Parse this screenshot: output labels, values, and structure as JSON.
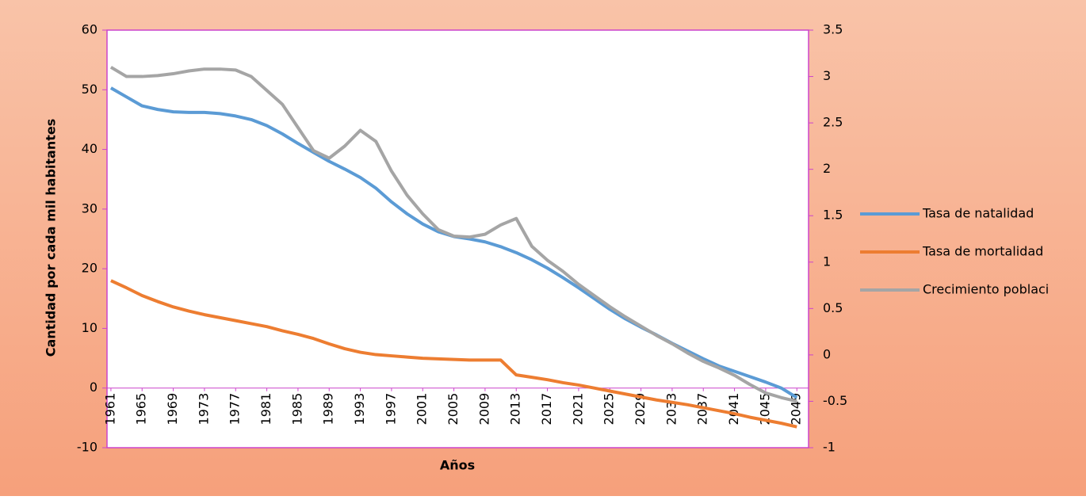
{
  "chart_data": {
    "type": "line",
    "x_label": "Años",
    "y_label": "Cantidad por cada mil habitantes",
    "x": [
      1961,
      1963,
      1965,
      1967,
      1969,
      1971,
      1973,
      1975,
      1977,
      1979,
      1981,
      1983,
      1985,
      1987,
      1989,
      1991,
      1993,
      1995,
      1997,
      1999,
      2001,
      2003,
      2005,
      2007,
      2009,
      2011,
      2013,
      2015,
      2017,
      2019,
      2021,
      2023,
      2025,
      2027,
      2029,
      2031,
      2033,
      2035,
      2037,
      2039,
      2041,
      2043,
      2045,
      2047,
      2049
    ],
    "xlim": [
      1960.5,
      2050.5
    ],
    "xticks": [
      1961,
      1965,
      1969,
      1973,
      1977,
      1981,
      1985,
      1989,
      1993,
      1997,
      2001,
      2005,
      2009,
      2013,
      2017,
      2021,
      2025,
      2029,
      2033,
      2037,
      2041,
      2045,
      2049
    ],
    "ylim": [
      -10,
      60
    ],
    "yticks": [
      -10,
      0,
      10,
      20,
      30,
      40,
      50,
      60
    ],
    "y2lim": [
      -1,
      3.5
    ],
    "y2ticks": [
      -1,
      -0.5,
      0,
      0.5,
      1,
      1.5,
      2,
      2.5,
      3,
      3.5
    ],
    "series": [
      {
        "name": "Tasa de natalidad",
        "color": "#5b9bd5",
        "values": [
          50.3,
          48.8,
          47.3,
          46.7,
          46.3,
          46.2,
          46.2,
          46.0,
          45.6,
          45.0,
          44.0,
          42.6,
          41.0,
          39.5,
          38.0,
          36.7,
          35.3,
          33.5,
          31.2,
          29.2,
          27.5,
          26.2,
          25.4,
          25.0,
          24.5,
          23.7,
          22.7,
          21.5,
          20.1,
          18.5,
          16.8,
          15.0,
          13.2,
          11.6,
          10.2,
          8.9,
          7.5,
          6.2,
          4.9,
          3.7,
          2.8,
          1.9,
          1.0,
          0.0,
          -1.6
        ]
      },
      {
        "name": "Tasa de mortalidad",
        "color": "#ed7d31",
        "values": [
          18.0,
          16.8,
          15.5,
          14.5,
          13.6,
          12.9,
          12.3,
          11.8,
          11.3,
          10.8,
          10.3,
          9.6,
          9.0,
          8.3,
          7.4,
          6.6,
          6.0,
          5.6,
          5.4,
          5.2,
          5.0,
          4.9,
          4.8,
          4.7,
          4.7,
          4.7,
          2.2,
          1.8,
          1.4,
          0.9,
          0.5,
          0.0,
          -0.5,
          -1.0,
          -1.5,
          -2.0,
          -2.4,
          -2.8,
          -3.3,
          -3.8,
          -4.3,
          -4.9,
          -5.4,
          -5.9,
          -6.5
        ]
      },
      {
        "name": "Crecimiento poblaci",
        "color": "#a5a5a5",
        "axis": "y2",
        "values": [
          3.1,
          3.0,
          3.0,
          3.01,
          3.03,
          3.06,
          3.08,
          3.08,
          3.07,
          3.0,
          2.85,
          2.7,
          2.45,
          2.2,
          2.12,
          2.25,
          2.42,
          2.3,
          1.98,
          1.72,
          1.52,
          1.35,
          1.28,
          1.27,
          1.3,
          1.4,
          1.47,
          1.17,
          1.02,
          0.9,
          0.76,
          0.64,
          0.52,
          0.41,
          0.31,
          0.21,
          0.12,
          0.02,
          -0.07,
          -0.14,
          -0.22,
          -0.32,
          -0.41,
          -0.46,
          -0.5
        ]
      }
    ]
  }
}
